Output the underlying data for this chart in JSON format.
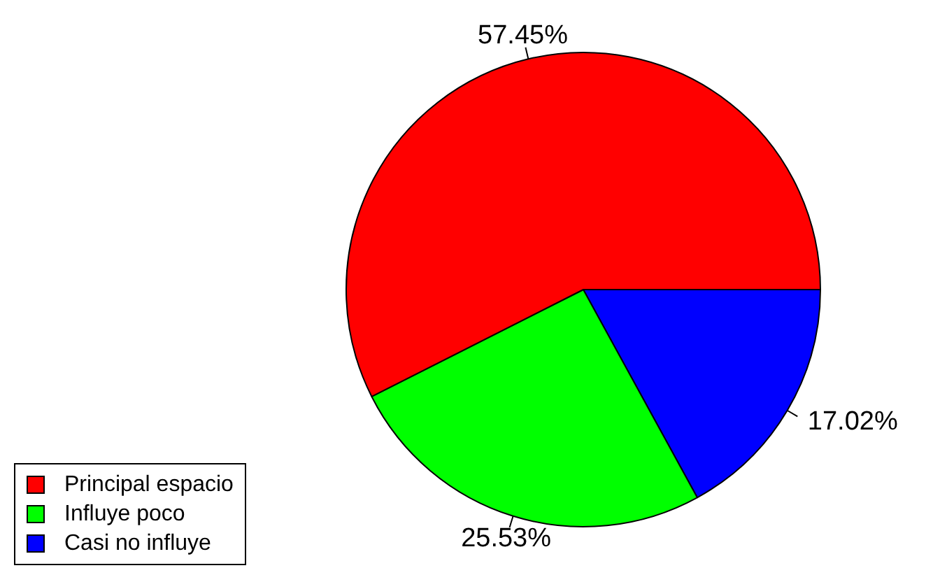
{
  "chart_data": {
    "type": "pie",
    "categories": [
      "Principal espacio",
      "Influye poco",
      "Casi no influye"
    ],
    "values": [
      57.45,
      25.53,
      17.02
    ],
    "colors": [
      "#ff0000",
      "#00ff00",
      "#0000ff"
    ],
    "value_labels": [
      "57.45%",
      "25.53%",
      "17.02%"
    ],
    "legend": "bottom left"
  }
}
